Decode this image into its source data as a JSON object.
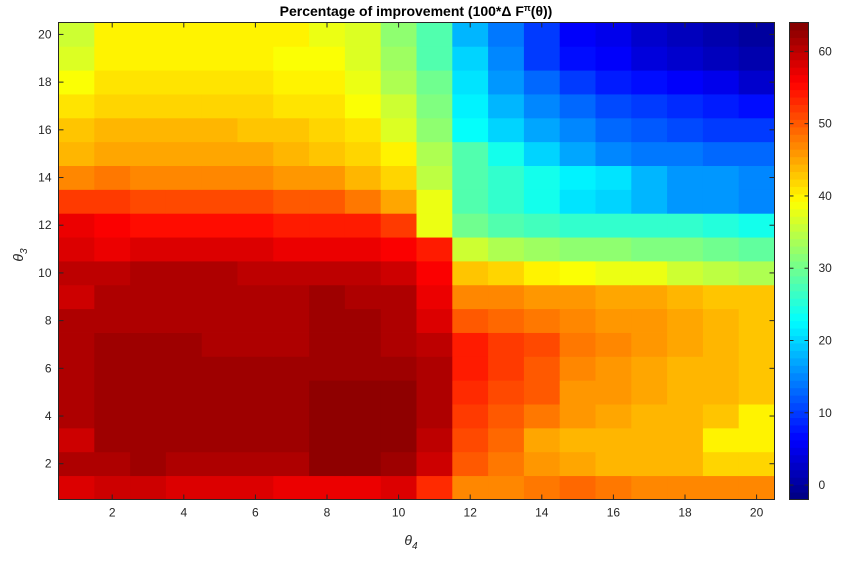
{
  "chart_data": {
    "type": "heatmap",
    "title_main": "Percentage of improvement (100*Δ F",
    "title_sup": "π",
    "title_tail": "(θ))",
    "xlabel_symbol": "θ",
    "xlabel_sub": "4",
    "ylabel_symbol": "θ",
    "ylabel_sub": "3",
    "x": [
      1,
      2,
      3,
      4,
      5,
      6,
      7,
      8,
      9,
      10,
      11,
      12,
      13,
      14,
      15,
      16,
      17,
      18,
      19,
      20
    ],
    "y": [
      1,
      2,
      3,
      4,
      5,
      6,
      7,
      8,
      9,
      10,
      11,
      12,
      13,
      14,
      15,
      16,
      17,
      18,
      19,
      20
    ],
    "xlim": [
      0.5,
      20.5
    ],
    "ylim": [
      0.5,
      20.5
    ],
    "x_ticks": [
      2,
      4,
      6,
      8,
      10,
      12,
      14,
      16,
      18,
      20
    ],
    "y_ticks": [
      2,
      4,
      6,
      8,
      10,
      12,
      14,
      16,
      18,
      20
    ],
    "colorbar": {
      "min": -2,
      "max": 64,
      "ticks": [
        0,
        10,
        20,
        30,
        40,
        50,
        60
      ],
      "colormap": "jet"
    },
    "grid": false,
    "z": [
      [
        58,
        59,
        59,
        58,
        58,
        58,
        57,
        57,
        57,
        58,
        53,
        47,
        47,
        48,
        49,
        48,
        47,
        47,
        47,
        47
      ],
      [
        61,
        61,
        62,
        61,
        61,
        61,
        61,
        63,
        63,
        62,
        59,
        50,
        48,
        46,
        45,
        44,
        44,
        44,
        42,
        42
      ],
      [
        59,
        62,
        62,
        62,
        62,
        62,
        62,
        63,
        63,
        63,
        60,
        51,
        49,
        45,
        44,
        44,
        44,
        44,
        40,
        40
      ],
      [
        61,
        62,
        62,
        62,
        62,
        62,
        62,
        63,
        63,
        63,
        61,
        52,
        50,
        48,
        46,
        45,
        44,
        44,
        43,
        40
      ],
      [
        61,
        62,
        62,
        62,
        62,
        62,
        62,
        63,
        63,
        63,
        61,
        53,
        51,
        50,
        46,
        46,
        45,
        44,
        44,
        43
      ],
      [
        61,
        62,
        62,
        62,
        62,
        62,
        62,
        62,
        62,
        62,
        61,
        54,
        52,
        50,
        47,
        46,
        45,
        44,
        44,
        43
      ],
      [
        61,
        62,
        62,
        62,
        61,
        61,
        61,
        62,
        62,
        61,
        60,
        54,
        52,
        51,
        48,
        47,
        46,
        45,
        44,
        43
      ],
      [
        61,
        61,
        61,
        61,
        61,
        61,
        61,
        62,
        62,
        61,
        58,
        50,
        49,
        48,
        47,
        46,
        46,
        45,
        44,
        43
      ],
      [
        59,
        61,
        61,
        61,
        61,
        61,
        61,
        62,
        61,
        61,
        57,
        47,
        47,
        46,
        46,
        45,
        45,
        44,
        43,
        43
      ],
      [
        60,
        60,
        61,
        61,
        61,
        60,
        60,
        60,
        60,
        59,
        56,
        43,
        42,
        40,
        39,
        38,
        38,
        36,
        35,
        34
      ],
      [
        58,
        57,
        58,
        58,
        58,
        58,
        57,
        57,
        57,
        56,
        54,
        36,
        34,
        33,
        32,
        32,
        31,
        31,
        30,
        29
      ],
      [
        57,
        56,
        55,
        55,
        55,
        55,
        54,
        54,
        54,
        52,
        38,
        30,
        28,
        27,
        26,
        26,
        26,
        26,
        25,
        24
      ],
      [
        52,
        52,
        51,
        51,
        51,
        51,
        50,
        50,
        48,
        45,
        38,
        28,
        26,
        24,
        21,
        20,
        18,
        16,
        16,
        15
      ],
      [
        47,
        48,
        47,
        47,
        47,
        47,
        46,
        46,
        44,
        42,
        35,
        28,
        26,
        24,
        22,
        21,
        18,
        16,
        16,
        15
      ],
      [
        44,
        45,
        45,
        45,
        45,
        45,
        44,
        43,
        42,
        40,
        34,
        28,
        24,
        20,
        17,
        15,
        14,
        14,
        13,
        13
      ],
      [
        43,
        44,
        44,
        44,
        44,
        43,
        43,
        42,
        41,
        37,
        32,
        23,
        20,
        17,
        15,
        13,
        12,
        11,
        10,
        10
      ],
      [
        41,
        42,
        42,
        42,
        42,
        42,
        41,
        41,
        39,
        36,
        31,
        22,
        18,
        15,
        13,
        11,
        10,
        9,
        8,
        7
      ],
      [
        39,
        41,
        41,
        41,
        41,
        41,
        40,
        40,
        38,
        34,
        30,
        21,
        16,
        13,
        10,
        8,
        7,
        6,
        5,
        3
      ],
      [
        37,
        40,
        40,
        40,
        40,
        40,
        39,
        39,
        37,
        33,
        28,
        20,
        15,
        10,
        7,
        6,
        4,
        3,
        2,
        1
      ],
      [
        36,
        40,
        40,
        40,
        40,
        40,
        40,
        38,
        37,
        32,
        28,
        18,
        14,
        10,
        6,
        5,
        3,
        2,
        1,
        0
      ]
    ]
  }
}
